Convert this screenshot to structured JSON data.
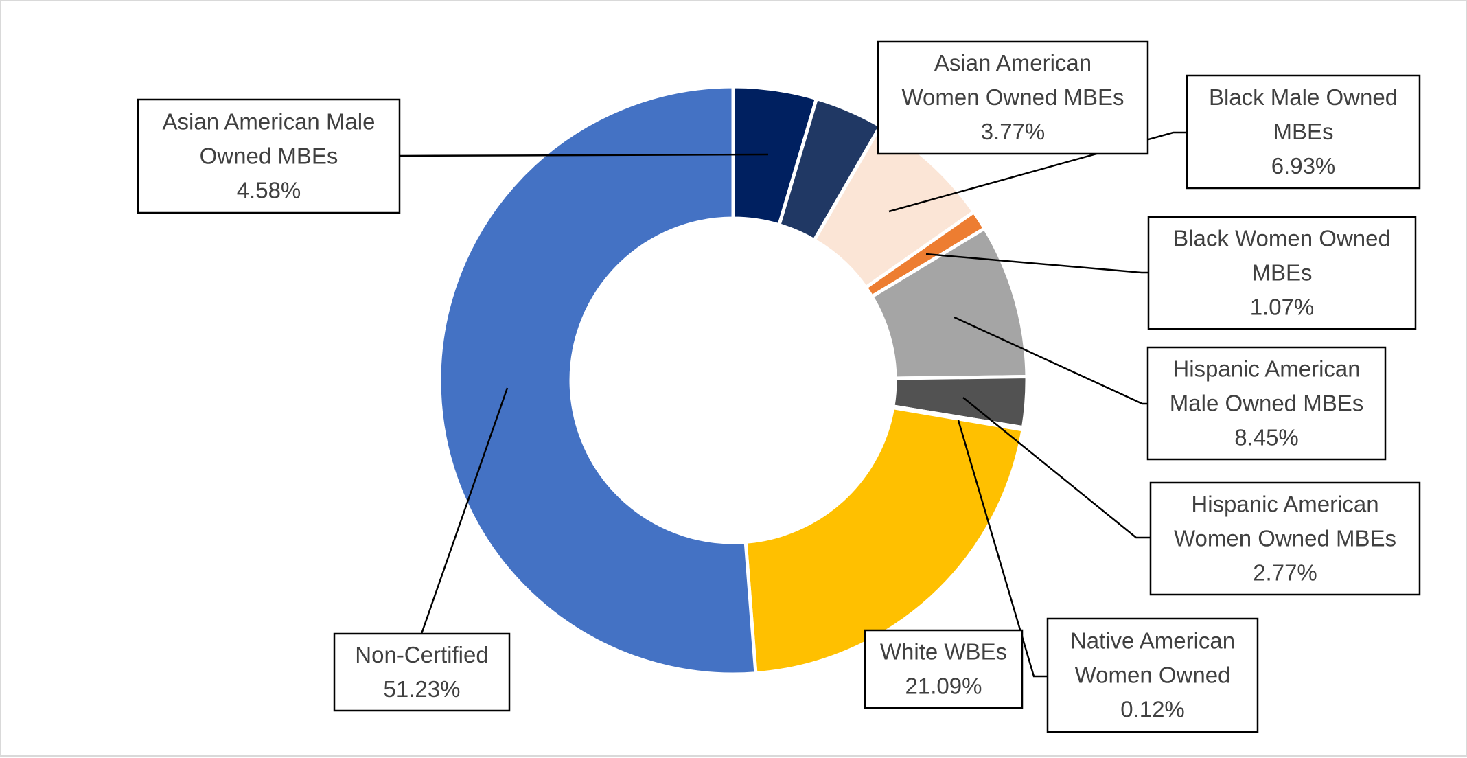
{
  "chart_data": {
    "type": "pie",
    "variant": "donut",
    "title": "",
    "legend": "none",
    "slices": [
      {
        "label": "Asian American Male Owned MBEs",
        "label_lines": [
          "Asian American Male",
          "Owned MBEs"
        ],
        "value": 4.58,
        "display": "4.58%",
        "color": "#002060"
      },
      {
        "label": "Asian American Women Owned MBEs",
        "label_lines": [
          "Asian American",
          "Women Owned MBEs"
        ],
        "value": 3.77,
        "display": "3.77%",
        "color": "#203864"
      },
      {
        "label": "Black Male Owned MBEs",
        "label_lines": [
          "Black Male Owned",
          "MBEs"
        ],
        "value": 6.93,
        "display": "6.93%",
        "color": "#FBE5D6"
      },
      {
        "label": "Black Women Owned MBEs",
        "label_lines": [
          "Black Women Owned",
          "MBEs"
        ],
        "value": 1.07,
        "display": "1.07%",
        "color": "#ED7D31"
      },
      {
        "label": "Hispanic American Male Owned MBEs",
        "label_lines": [
          "Hispanic American",
          "Male Owned MBEs"
        ],
        "value": 8.45,
        "display": "8.45%",
        "color": "#A5A5A5"
      },
      {
        "label": "Hispanic American Women Owned MBEs",
        "label_lines": [
          "Hispanic American",
          "Women Owned MBEs"
        ],
        "value": 2.77,
        "display": "2.77%",
        "color": "#525252"
      },
      {
        "label": "Native American Women Owned",
        "label_lines": [
          "Native American",
          "Women Owned"
        ],
        "value": 0.12,
        "display": "0.12%",
        "color": "#203864"
      },
      {
        "label": "White WBEs",
        "label_lines": [
          "White WBEs"
        ],
        "value": 21.09,
        "display": "21.09%",
        "color": "#FFC000"
      },
      {
        "label": "Non-Certified",
        "label_lines": [
          "Non-Certified"
        ],
        "value": 51.23,
        "display": "51.23%",
        "color": "#4472C4"
      }
    ]
  }
}
